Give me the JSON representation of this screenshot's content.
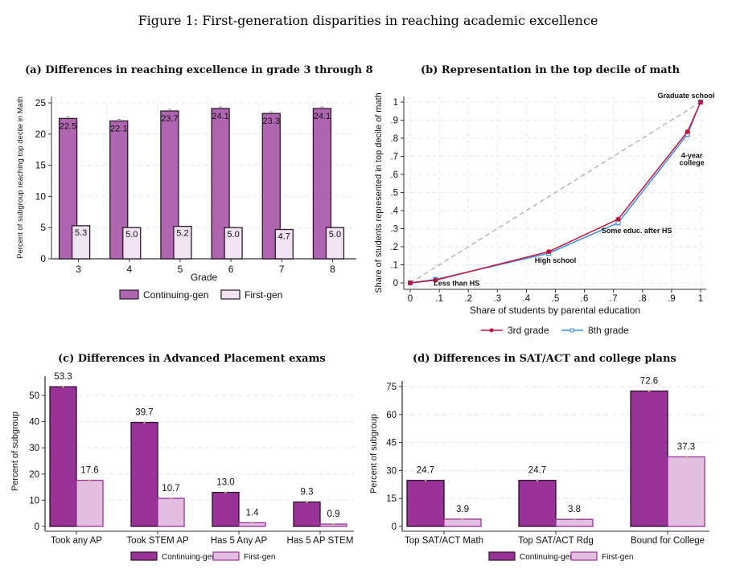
{
  "figure_title": "Figure 1: First-generation disparities in reaching academic excellence",
  "colors": {
    "a_cont": "#b065b0",
    "a_first": "#f1e3f1",
    "cont": "#993399",
    "first": "#e2bfe0",
    "line3": "#c0143c",
    "line8": "#3a8ee6"
  },
  "chart_data": [
    {
      "id": "a",
      "type": "bar",
      "title": "(a) Differences in reaching excellence in grade 3 through 8",
      "xlabel": "Grade",
      "ylabel": "Percent of subgroup reaching top decile in Math",
      "categories": [
        "3",
        "4",
        "5",
        "6",
        "7",
        "8"
      ],
      "series": [
        {
          "name": "Continuing-gen",
          "values": [
            22.5,
            22.1,
            23.7,
            24.1,
            23.3,
            24.1
          ],
          "labels": [
            "22.5",
            "22.1",
            "23.7",
            "24.1",
            "23.3",
            "24.1"
          ]
        },
        {
          "name": "First-gen",
          "values": [
            5.3,
            5.0,
            5.2,
            5.0,
            4.7,
            5.0
          ],
          "labels": [
            "5.3",
            "5.0",
            "5.2",
            "5.0",
            "4.7",
            "5.0"
          ]
        }
      ],
      "ylim": [
        0,
        25
      ],
      "yticks": [
        0,
        5,
        10,
        15,
        20,
        25
      ],
      "grid": true,
      "legend": "bottom"
    },
    {
      "id": "b",
      "type": "line",
      "title": "(b) Representation in the top decile of math",
      "xlabel": "Share of students by parental education",
      "ylabel": "Share of students represented in top decile of math",
      "xlim": [
        0,
        1
      ],
      "ylim": [
        0,
        1
      ],
      "xticks": [
        "0",
        ".1",
        ".2",
        ".3",
        ".4",
        ".5",
        ".6",
        ".7",
        ".8",
        ".9",
        "1"
      ],
      "yticks": [
        "0",
        ".1",
        ".2",
        ".3",
        ".4",
        ".5",
        ".6",
        ".7",
        ".8",
        ".9",
        "1"
      ],
      "series": [
        {
          "name": "3rd grade",
          "x": [
            0,
            0.087,
            0.477,
            0.716,
            0.955,
            1.0
          ],
          "y": [
            0,
            0.015,
            0.173,
            0.352,
            0.836,
            1.0
          ],
          "marker": "circle"
        },
        {
          "name": "8th grade",
          "x": [
            0,
            0.087,
            0.477,
            0.716,
            0.955,
            1.0
          ],
          "y": [
            0,
            0.019,
            0.164,
            0.332,
            0.822,
            1.0
          ],
          "marker": "square"
        }
      ],
      "reference_line": {
        "x": [
          0,
          1
        ],
        "y": [
          0,
          1
        ],
        "style": "dashed"
      },
      "annotations": [
        {
          "text": "Less than HS",
          "x": 0.16,
          "y": -0.003
        },
        {
          "text": "High school",
          "x": 0.5,
          "y": 0.125
        },
        {
          "text": "Some educ. after HS",
          "x": 0.78,
          "y": 0.29
        },
        {
          "text": "4-year",
          "x": 0.97,
          "y": 0.705
        },
        {
          "text": "college",
          "x": 0.97,
          "y": 0.665
        },
        {
          "text": "Graduate school",
          "x": 0.95,
          "y": 1.035
        }
      ],
      "grid": true,
      "legend": "bottom"
    },
    {
      "id": "c",
      "type": "bar",
      "title": "(c) Differences in Advanced Placement exams",
      "xlabel": "",
      "ylabel": "Percent of subgroup",
      "categories": [
        "Took any AP",
        "Took STEM AP",
        "Has 5 Any AP",
        "Has 5 AP STEM"
      ],
      "series": [
        {
          "name": "Continuing-gen",
          "values": [
            53.3,
            39.7,
            13.0,
            9.3
          ],
          "labels": [
            "53.3",
            "39.7",
            "13.0",
            "9.3"
          ]
        },
        {
          "name": "First-gen",
          "values": [
            17.6,
            10.7,
            1.4,
            0.9
          ],
          "labels": [
            "17.6",
            "10.7",
            "1.4",
            "0.9"
          ]
        }
      ],
      "ylim": [
        0,
        50
      ],
      "yticks": [
        0,
        10,
        20,
        30,
        40,
        50
      ],
      "grid": true,
      "legend": "bottom"
    },
    {
      "id": "d",
      "type": "bar",
      "title": "(d) Differences in SAT/ACT and college plans",
      "xlabel": "",
      "ylabel": "Percent of subgroup",
      "categories": [
        "Top SAT/ACT Math",
        "Top SAT/ACT Rdg",
        "Bound for College"
      ],
      "series": [
        {
          "name": "Continuing-gen",
          "values": [
            24.7,
            24.7,
            72.6
          ],
          "labels": [
            "24.7",
            "24.7",
            "72.6"
          ]
        },
        {
          "name": "First-gen",
          "values": [
            3.9,
            3.8,
            37.3
          ],
          "labels": [
            "3.9",
            "3.8",
            "37.3"
          ]
        }
      ],
      "ylim": [
        0,
        75
      ],
      "yticks": [
        0,
        15,
        30,
        45,
        60,
        75
      ],
      "grid": true,
      "legend": "bottom"
    }
  ]
}
